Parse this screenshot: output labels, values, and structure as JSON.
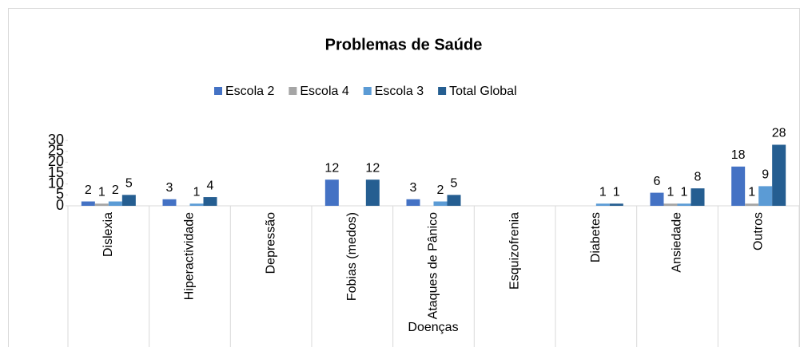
{
  "chart_data": {
    "type": "bar",
    "title": "Problemas de Saúde",
    "x_label": "Doenças",
    "categories": [
      "Dislexia",
      "Hiperactividade",
      "Depressão",
      "Fobias (medos)",
      "Ataques de Pânico",
      "Esquizofrenia",
      "Diabetes",
      "Ansiedade",
      "Outros"
    ],
    "series": [
      {
        "name": "Escola 2",
        "color": "#4472c4",
        "values": [
          2,
          3,
          null,
          12,
          3,
          null,
          null,
          6,
          18
        ]
      },
      {
        "name": "Escola 4",
        "color": "#a5a5a5",
        "values": [
          1,
          null,
          null,
          null,
          null,
          null,
          null,
          1,
          1
        ]
      },
      {
        "name": "Escola 3",
        "color": "#5b9bd5",
        "values": [
          2,
          1,
          null,
          null,
          2,
          null,
          1,
          1,
          9
        ]
      },
      {
        "name": "Total Global",
        "color": "#255e91",
        "values": [
          5,
          4,
          null,
          12,
          5,
          null,
          1,
          8,
          28
        ]
      }
    ],
    "ylim": [
      0,
      30
    ],
    "yticks": [
      0,
      5,
      10,
      15,
      20,
      25,
      30
    ],
    "legend": "top"
  }
}
